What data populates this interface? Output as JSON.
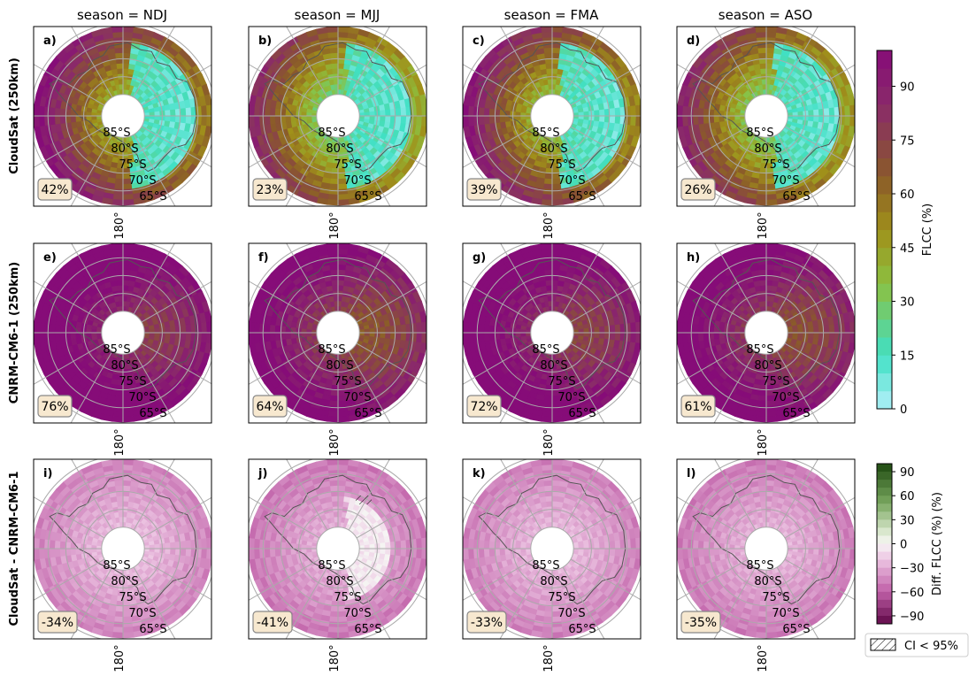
{
  "chart_data": {
    "type": "heatmap",
    "projection": "south polar stereographic",
    "columns": [
      "season = NDJ",
      "season = MJJ",
      "season = FMA",
      "season = ASO"
    ],
    "rows": [
      "CloudSat (250km)",
      "CNRM-CM6-1 (250km)",
      "CloudSat - CNRM-CM6-1"
    ],
    "lat_labels": [
      "85°S",
      "80°S",
      "75°S",
      "70°S",
      "65°S"
    ],
    "lon_label": "180°",
    "grid": true,
    "panels": [
      {
        "label": "a)",
        "row": 0,
        "col": 0,
        "value": "42%",
        "mean": 42
      },
      {
        "label": "b)",
        "row": 0,
        "col": 1,
        "value": "23%",
        "mean": 23
      },
      {
        "label": "c)",
        "row": 0,
        "col": 2,
        "value": "39%",
        "mean": 39
      },
      {
        "label": "d)",
        "row": 0,
        "col": 3,
        "value": "26%",
        "mean": 26
      },
      {
        "label": "e)",
        "row": 1,
        "col": 0,
        "value": "76%",
        "mean": 76
      },
      {
        "label": "f)",
        "row": 1,
        "col": 1,
        "value": "64%",
        "mean": 64
      },
      {
        "label": "g)",
        "row": 1,
        "col": 2,
        "value": "72%",
        "mean": 72
      },
      {
        "label": "h)",
        "row": 1,
        "col": 3,
        "value": "61%",
        "mean": 61
      },
      {
        "label": "i)",
        "row": 2,
        "col": 0,
        "value": "-34%",
        "mean": -34
      },
      {
        "label": "j)",
        "row": 2,
        "col": 1,
        "value": "-41%",
        "mean": -41
      },
      {
        "label": "k)",
        "row": 2,
        "col": 2,
        "value": "-33%",
        "mean": -33
      },
      {
        "label": "l)",
        "row": 2,
        "col": 3,
        "value": "-35%",
        "mean": -35
      }
    ],
    "colorbar_flcc": {
      "label": "FLCC (%)",
      "ticks": [
        "0",
        "15",
        "30",
        "45",
        "60",
        "75",
        "90"
      ],
      "range": [
        0,
        100
      ],
      "colors": [
        "#b3f0fa",
        "#3fe0c0",
        "#8fbf3a",
        "#a0901a",
        "#8a5a2a",
        "#8a2a6a",
        "#860c78"
      ]
    },
    "colorbar_diff": {
      "label": "Diff. FLCC (%)  (%)",
      "ticks": [
        "90",
        "60",
        "30",
        "0",
        "−30",
        "−60",
        "−90"
      ],
      "range": [
        -100,
        100
      ],
      "colors_top_to_bottom": [
        "#1e4a10",
        "#5a8a3a",
        "#a8c890",
        "#f4f4f0",
        "#e8b8dc",
        "#c060a8",
        "#6a0a4a"
      ]
    },
    "legend": {
      "label": "CI < 95%",
      "placement": "bottom-right"
    }
  }
}
